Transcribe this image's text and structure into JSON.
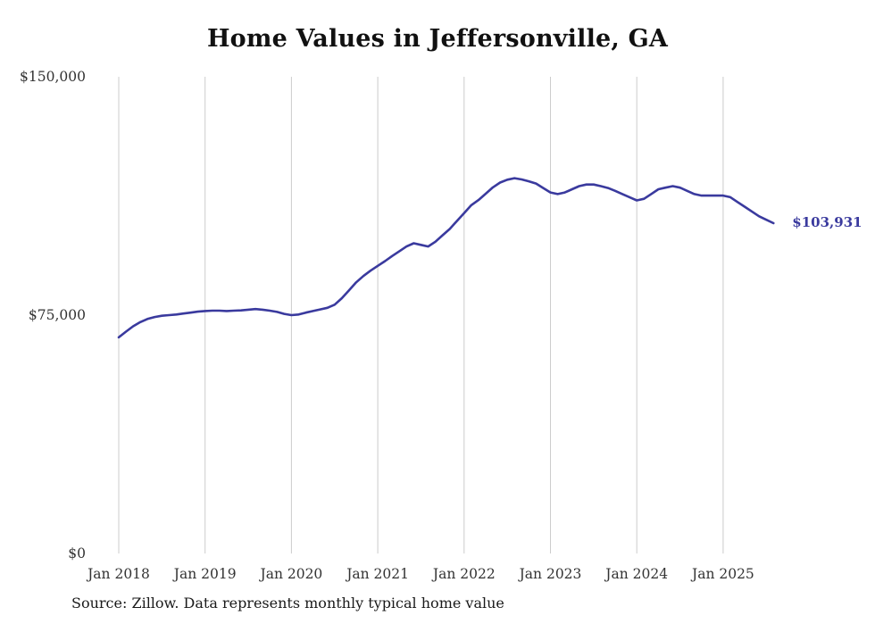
{
  "chart_data": {
    "type": "line",
    "title": "Home Values in Jeffersonville, GA",
    "source": "Source: Zillow. Data represents monthly typical home value",
    "xlabel": "",
    "ylabel": "",
    "ylim": [
      0,
      150000
    ],
    "grid": "vertical-yearly-gridlines",
    "legend": "none",
    "line_color": "#3a3a9e",
    "grid_color": "#cccccc",
    "tick_color": "#333333",
    "end_label": "$103,931",
    "end_value": 103931,
    "y_ticks": [
      {
        "value": 0,
        "label": "$0"
      },
      {
        "value": 75000,
        "label": "$75,000"
      },
      {
        "value": 150000,
        "label": "$150,000"
      }
    ],
    "x_ticks": [
      "Jan 2018",
      "Jan 2019",
      "Jan 2020",
      "Jan 2021",
      "Jan 2022",
      "Jan 2023",
      "Jan 2024",
      "Jan 2025"
    ],
    "series": [
      {
        "name": "Monthly typical home value",
        "start_month": "Jan 2018",
        "end_month": "Aug 2025",
        "values": [
          68000,
          69800,
          71500,
          72800,
          73800,
          74400,
          74800,
          75000,
          75200,
          75500,
          75800,
          76100,
          76300,
          76400,
          76400,
          76300,
          76400,
          76500,
          76700,
          76900,
          76700,
          76400,
          76000,
          75400,
          75000,
          75200,
          75800,
          76300,
          76800,
          77300,
          78300,
          80300,
          82800,
          85300,
          87300,
          89000,
          90500,
          92000,
          93600,
          95100,
          96600,
          97600,
          97100,
          96600,
          98100,
          100100,
          102100,
          104600,
          107100,
          109600,
          111200,
          113200,
          115200,
          116700,
          117600,
          118100,
          117700,
          117100,
          116400,
          115000,
          113600,
          113100,
          113600,
          114600,
          115600,
          116100,
          116100,
          115600,
          115000,
          114100,
          113100,
          112100,
          111100,
          111600,
          113100,
          114600,
          115100,
          115600,
          115100,
          114100,
          113100,
          112600,
          112600,
          112600,
          112600,
          112100,
          110600,
          109100,
          107600,
          106100,
          105000,
          103931
        ]
      }
    ]
  }
}
